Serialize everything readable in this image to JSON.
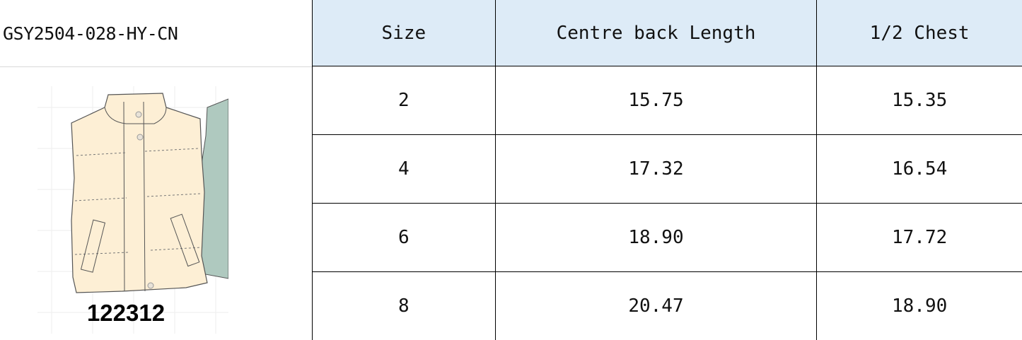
{
  "style_code": "GSY2504-028-HY-CN",
  "image": {
    "label": "122312",
    "colors": {
      "vest": "#fdefd5",
      "second_vest": "#afc9bf"
    }
  },
  "table": {
    "headers": [
      "Size",
      "Centre back Length",
      "1/2 Chest"
    ],
    "rows": [
      [
        "2",
        "15.75",
        "15.35"
      ],
      [
        "4",
        "17.32",
        "16.54"
      ],
      [
        "6",
        "18.90",
        "17.72"
      ],
      [
        "8",
        "20.47",
        "18.90"
      ]
    ]
  },
  "colors": {
    "header_bg": "#ddebf7"
  }
}
